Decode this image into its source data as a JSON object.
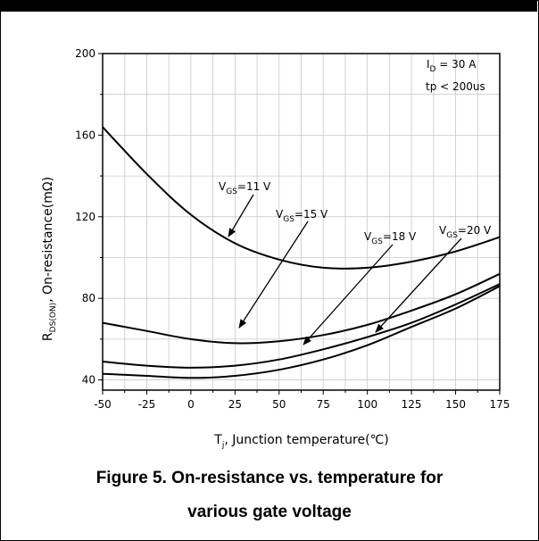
{
  "figure": {
    "caption_line1": "Figure 5. On-resistance vs. temperature for",
    "caption_line2": "various gate voltage"
  },
  "chart_data": {
    "type": "line",
    "xlabel": {
      "main": "T",
      "sub": "j",
      "rest": ", Junction temperature(℃)"
    },
    "ylabel": {
      "main": "R",
      "sub": "DS(ON)",
      "rest": ", On-resistance(mΩ)"
    },
    "xlim": [
      -50,
      175
    ],
    "ylim": [
      35,
      200
    ],
    "x_ticks": [
      -50,
      -25,
      0,
      25,
      50,
      75,
      100,
      125,
      150,
      175
    ],
    "y_ticks": [
      40,
      80,
      120,
      160,
      200
    ],
    "grid": true,
    "conditions": {
      "id": {
        "main": "I",
        "sub": "D",
        "rest": " = 30 A"
      },
      "tp": "tp < 200us"
    },
    "series": [
      {
        "name": "VGS=11 V",
        "label": {
          "main": "V",
          "sub": "GS",
          "rest": "=11 V"
        },
        "x": [
          -50,
          -25,
          0,
          25,
          50,
          75,
          100,
          125,
          150,
          175
        ],
        "y": [
          164,
          141,
          121,
          107,
          99,
          95,
          95,
          98,
          103,
          110
        ]
      },
      {
        "name": "VGS=15 V",
        "label": {
          "main": "V",
          "sub": "GS",
          "rest": "=15 V"
        },
        "x": [
          -50,
          -25,
          0,
          25,
          50,
          75,
          100,
          125,
          150,
          175
        ],
        "y": [
          68,
          64,
          60,
          58,
          59,
          62,
          67,
          74,
          82,
          92
        ]
      },
      {
        "name": "VGS=18 V",
        "label": {
          "main": "V",
          "sub": "GS",
          "rest": "=18 V"
        },
        "x": [
          -50,
          -25,
          0,
          25,
          50,
          75,
          100,
          125,
          150,
          175
        ],
        "y": [
          49,
          47,
          46,
          47,
          50,
          55,
          61,
          68,
          77,
          87
        ]
      },
      {
        "name": "VGS=20 V",
        "label": {
          "main": "V",
          "sub": "GS",
          "rest": "=20 V"
        },
        "x": [
          -50,
          -25,
          0,
          25,
          50,
          75,
          100,
          125,
          150,
          175
        ],
        "y": [
          43,
          42,
          41,
          42,
          45,
          50,
          57,
          66,
          75,
          86
        ]
      }
    ]
  }
}
